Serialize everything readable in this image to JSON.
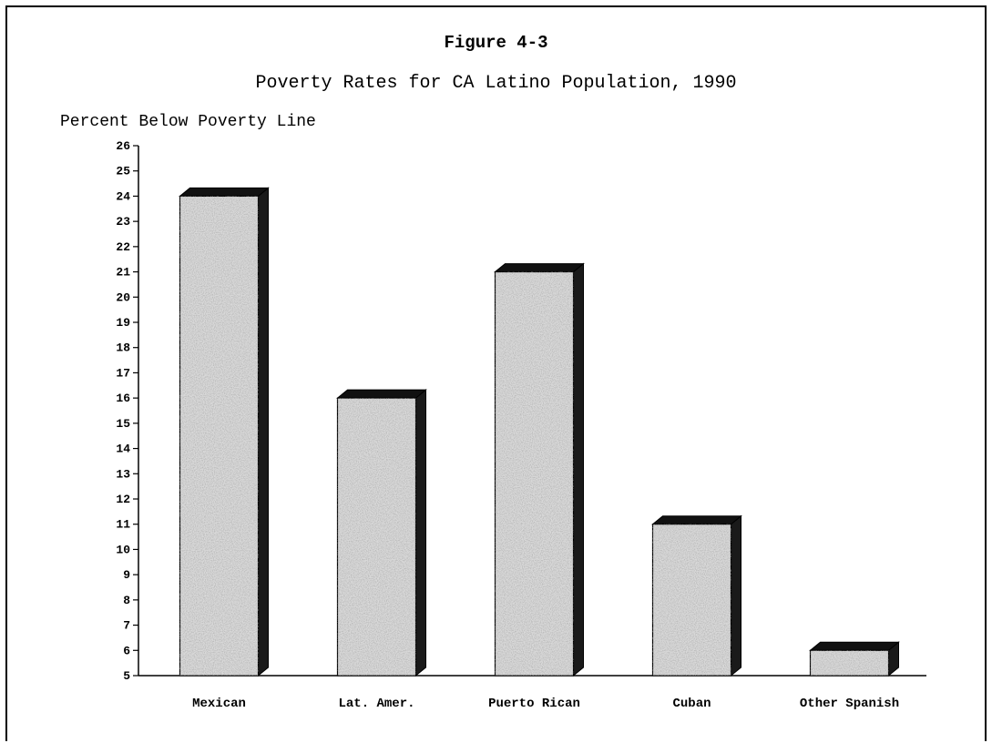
{
  "figure_label": "Figure 4-3",
  "chart_data": {
    "type": "bar",
    "title": "Poverty Rates for CA Latino Population, 1990",
    "xlabel": "",
    "ylabel": "Percent Below Poverty Line",
    "categories": [
      "Mexican",
      "Lat. Amer.",
      "Puerto Rican",
      "Cuban",
      "Other Spanish"
    ],
    "values": [
      24,
      16,
      21,
      11,
      6
    ],
    "ylim": [
      5,
      26
    ],
    "yticks": [
      5,
      6,
      7,
      8,
      9,
      10,
      11,
      12,
      13,
      14,
      15,
      16,
      17,
      18,
      19,
      20,
      21,
      22,
      23,
      24,
      25,
      26
    ],
    "grid": false,
    "legend": "none"
  }
}
